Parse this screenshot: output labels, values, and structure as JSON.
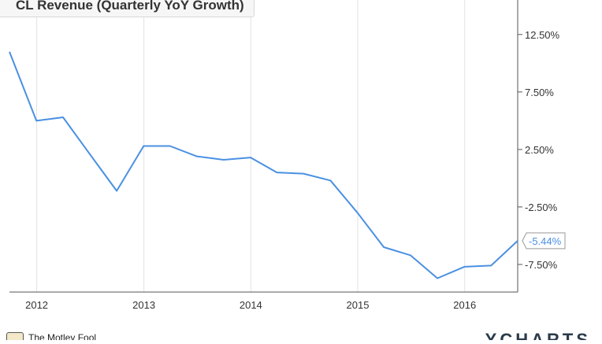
{
  "chart_data": {
    "type": "line",
    "title": "CL Revenue (Quarterly YoY Growth)",
    "x_tick_labels": [
      "2012",
      "2013",
      "2014",
      "2015",
      "2016"
    ],
    "y_tick_labels": [
      "12.50%",
      "7.50%",
      "2.50%",
      "-2.50%",
      "-7.50%"
    ],
    "y_ticks": [
      12.5,
      7.5,
      2.5,
      -2.5,
      -7.5
    ],
    "x_range": [
      "2011-09-30",
      "2016-06-30"
    ],
    "ylim": [
      -9.9,
      15.5
    ],
    "series": [
      {
        "color": "#4a90e2",
        "points": [
          {
            "x": "2011-09-30",
            "y": 11.0
          },
          {
            "x": "2011-12-31",
            "y": 5.0
          },
          {
            "x": "2012-03-31",
            "y": 5.3
          },
          {
            "x": "2012-06-30",
            "y": 2.1
          },
          {
            "x": "2012-09-30",
            "y": -1.1
          },
          {
            "x": "2012-12-31",
            "y": 2.8
          },
          {
            "x": "2013-03-31",
            "y": 2.8
          },
          {
            "x": "2013-06-30",
            "y": 1.9
          },
          {
            "x": "2013-09-30",
            "y": 1.6
          },
          {
            "x": "2013-12-31",
            "y": 1.8
          },
          {
            "x": "2014-03-31",
            "y": 0.5
          },
          {
            "x": "2014-06-30",
            "y": 0.4
          },
          {
            "x": "2014-09-30",
            "y": -0.2
          },
          {
            "x": "2014-12-31",
            "y": -3.0
          },
          {
            "x": "2015-03-31",
            "y": -6.0
          },
          {
            "x": "2015-06-30",
            "y": -6.7
          },
          {
            "x": "2015-09-30",
            "y": -8.7
          },
          {
            "x": "2015-12-31",
            "y": -7.7
          },
          {
            "x": "2016-03-31",
            "y": -7.6
          },
          {
            "x": "2016-06-30",
            "y": -5.44
          }
        ]
      }
    ],
    "end_value_label": "-5.44%",
    "grid": {
      "vertical": true,
      "horizontal": false
    },
    "colors": {
      "line": "#4a90e2",
      "grid": "#e2e2e2",
      "axis": "#555555",
      "text": "#333333",
      "label_text": "#4a90e2"
    }
  },
  "footer": {
    "logo_text": "The Motley Fool",
    "brand_text": "YCHARTS"
  }
}
